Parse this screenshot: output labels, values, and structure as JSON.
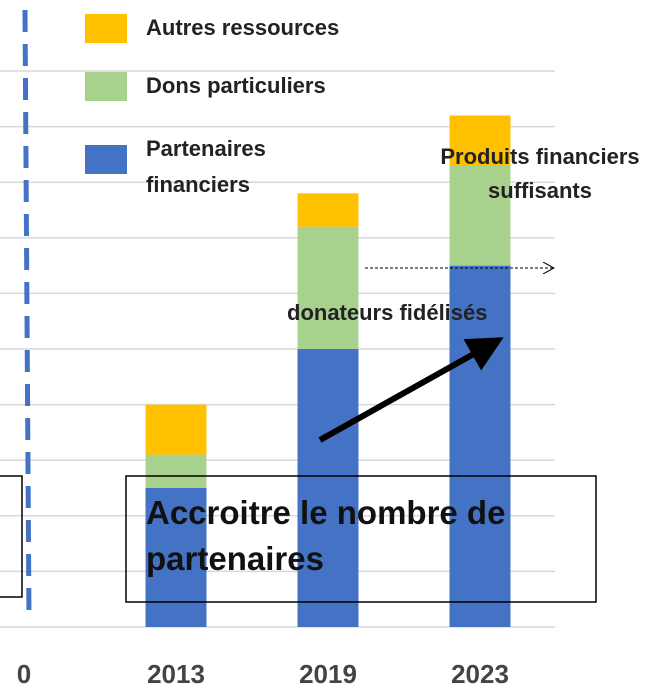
{
  "chart_data": {
    "type": "bar",
    "stacked": true,
    "categories": [
      "0",
      "2013",
      "2019",
      "2023"
    ],
    "series": [
      {
        "name": "Partenaires financiers",
        "color": "#4472c4",
        "values": [
          null,
          2.5,
          5,
          6.5
        ]
      },
      {
        "name": "Dons particuliers",
        "color": "#a9d18e",
        "values": [
          null,
          0.6,
          2.2,
          1.8
        ]
      },
      {
        "name": "Autres ressources",
        "color": "#ffc000",
        "values": [
          null,
          0.9,
          0.6,
          0.9
        ]
      }
    ],
    "ylim": [
      0,
      10
    ],
    "yticks": [
      0,
      1,
      2,
      3,
      4,
      5,
      6,
      7,
      8,
      9,
      10
    ],
    "grid": true,
    "annotations": [
      "Produits financiers suffisants",
      "donateurs fidélisés",
      "Accroitre le nombre de partenaires"
    ]
  }
}
